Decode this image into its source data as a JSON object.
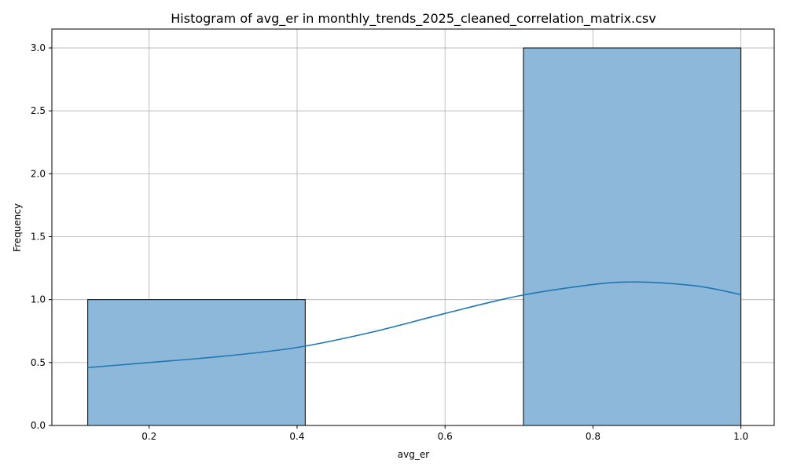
{
  "chart_data": {
    "type": "bar",
    "title": "Histogram of avg_er in monthly_trends_2025_cleaned_correlation_matrix.csv",
    "xlabel": "avg_er",
    "ylabel": "Frequency",
    "xlim": [
      0.0685,
      1.045
    ],
    "ylim": [
      0,
      3.15
    ],
    "grid": true,
    "x_ticks": [
      {
        "value": 0.2,
        "label": "0.2"
      },
      {
        "value": 0.4,
        "label": "0.4"
      },
      {
        "value": 0.6,
        "label": "0.6"
      },
      {
        "value": 0.8,
        "label": "0.8"
      },
      {
        "value": 1.0,
        "label": "1.0"
      }
    ],
    "y_ticks": [
      {
        "value": 0.0,
        "label": "0.0"
      },
      {
        "value": 0.5,
        "label": "0.5"
      },
      {
        "value": 1.0,
        "label": "1.0"
      },
      {
        "value": 1.5,
        "label": "1.5"
      },
      {
        "value": 2.0,
        "label": "2.0"
      },
      {
        "value": 2.5,
        "label": "2.5"
      },
      {
        "value": 3.0,
        "label": "3.0"
      }
    ],
    "bins": [
      {
        "start": 0.117,
        "end": 0.411,
        "count": 1
      },
      {
        "start": 0.411,
        "end": 0.706,
        "count": 0
      },
      {
        "start": 0.706,
        "end": 1.0,
        "count": 3
      }
    ],
    "kde": {
      "x": [
        0.117,
        0.2,
        0.3,
        0.4,
        0.5,
        0.6,
        0.7,
        0.8,
        0.85,
        0.9,
        0.95,
        1.0
      ],
      "y": [
        0.46,
        0.5,
        0.55,
        0.62,
        0.74,
        0.89,
        1.03,
        1.12,
        1.14,
        1.13,
        1.1,
        1.04
      ]
    },
    "colors": {
      "bar_fill": "#8db8d9",
      "bar_edge": "#000000",
      "kde_line": "#1f77b4",
      "grid": "#b0b0b0"
    }
  }
}
